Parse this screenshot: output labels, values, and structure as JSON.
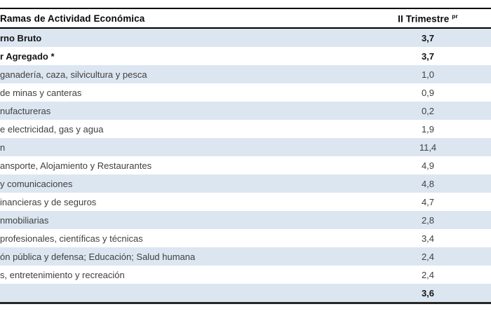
{
  "table": {
    "header": {
      "activity_column": "Ramas de Actividad Económica",
      "quarter_column": "II Trimestre",
      "quarter_superscript": "pr"
    },
    "rows": [
      {
        "label": "rno Bruto",
        "value": "3,7",
        "bold": true,
        "shaded": true
      },
      {
        "label": "r Agregado *",
        "value": "3,7",
        "bold": true,
        "shaded": false
      },
      {
        "label": "ganadería, caza, silvicultura y pesca",
        "value": "1,0",
        "bold": false,
        "shaded": true
      },
      {
        "label": "de minas y canteras",
        "value": "0,9",
        "bold": false,
        "shaded": false
      },
      {
        "label": "nufactureras",
        "value": "0,2",
        "bold": false,
        "shaded": true
      },
      {
        "label": "e electricidad, gas y agua",
        "value": "1,9",
        "bold": false,
        "shaded": false
      },
      {
        "label": "n",
        "value": "11,4",
        "bold": false,
        "shaded": true
      },
      {
        "label": "ansporte, Alojamiento y Restaurantes",
        "value": "4,9",
        "bold": false,
        "shaded": false
      },
      {
        "label": "y comunicaciones",
        "value": "4,8",
        "bold": false,
        "shaded": true
      },
      {
        "label": "inancieras y de seguros",
        "value": "4,7",
        "bold": false,
        "shaded": false
      },
      {
        "label": "nmobiliarias",
        "value": "2,8",
        "bold": false,
        "shaded": true
      },
      {
        "label": "profesionales, científicas y técnicas",
        "value": "3,4",
        "bold": false,
        "shaded": false
      },
      {
        "label": "ón pública y defensa; Educación; Salud humana",
        "value": "2,4",
        "bold": false,
        "shaded": true
      },
      {
        "label": "s, entretenimiento y recreación",
        "value": "2,4",
        "bold": false,
        "shaded": false
      },
      {
        "label": "",
        "value": "3,6",
        "bold": true,
        "shaded": true
      }
    ],
    "colors": {
      "row_shade": "#dce6f1",
      "row_plain": "#ffffff",
      "border": "#000000",
      "text_regular": "#3f3f3f",
      "text_bold": "#141414"
    }
  }
}
